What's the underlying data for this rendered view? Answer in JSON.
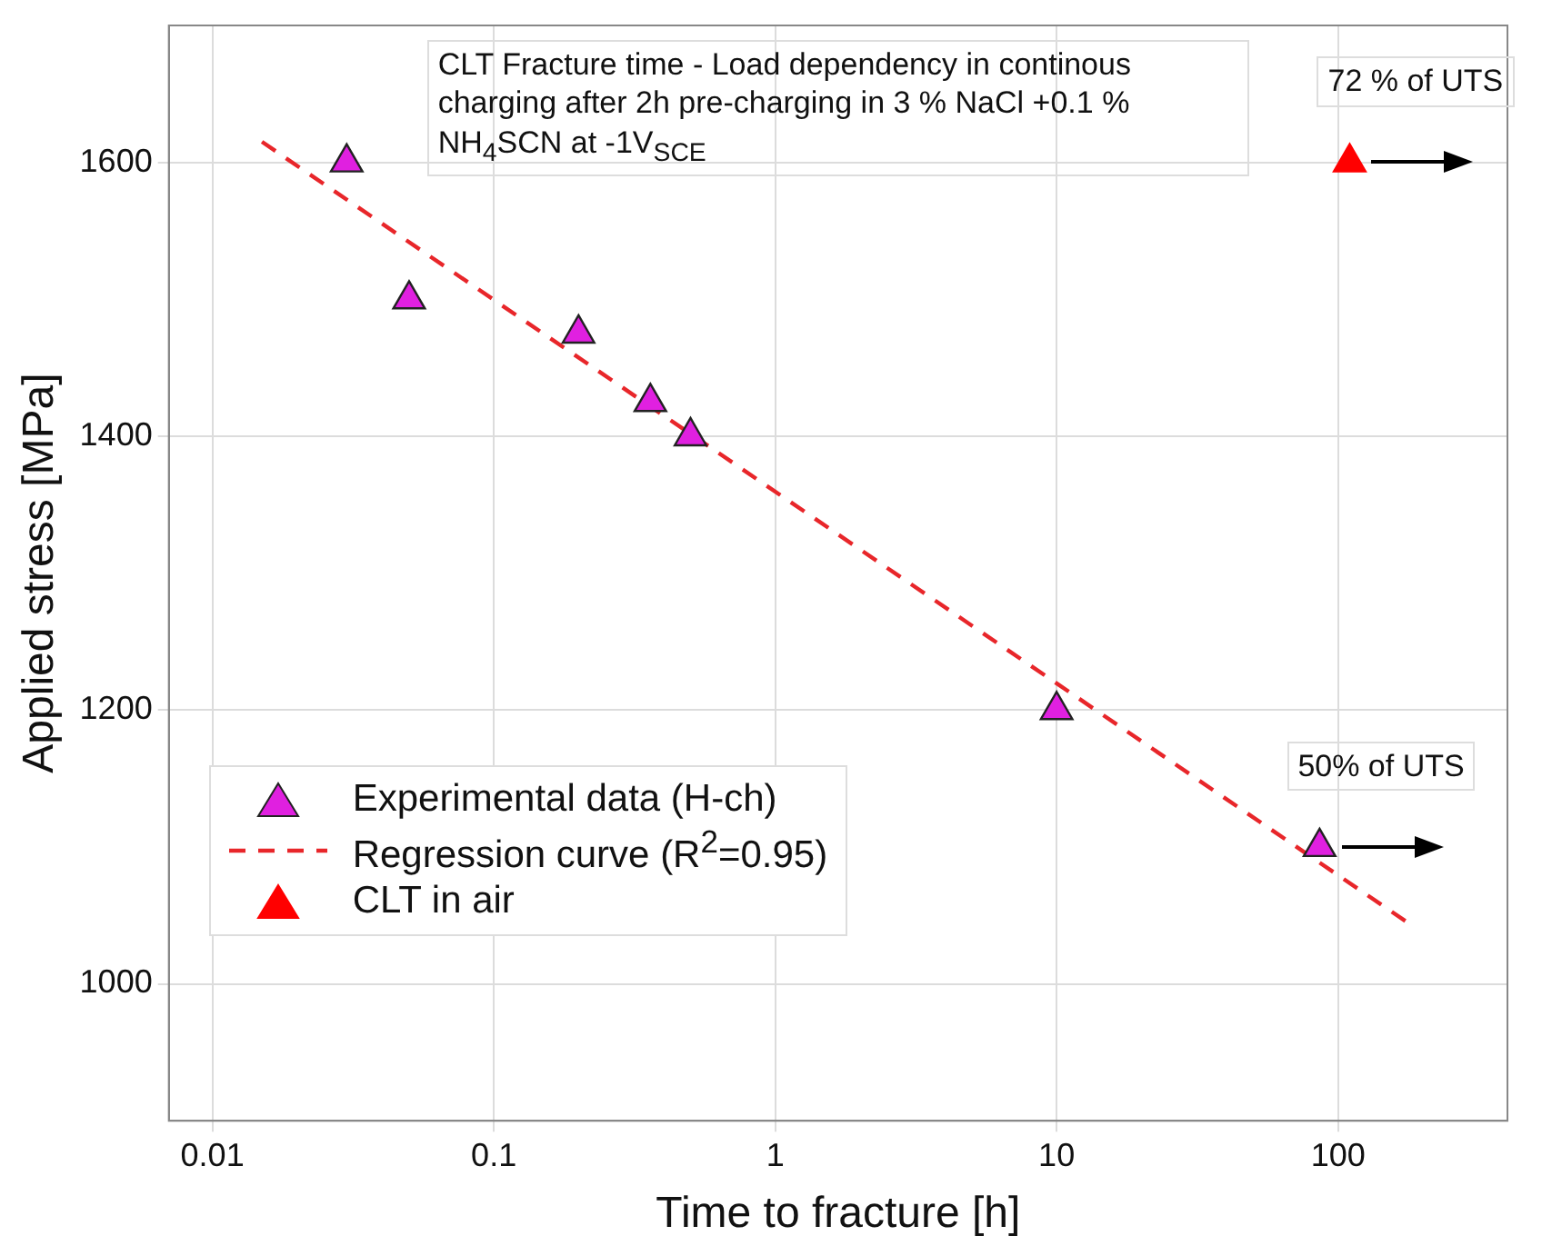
{
  "chart_data": {
    "type": "scatter",
    "xlabel": "Time to fracture [h]",
    "ylabel": "Applied stress [MPa]",
    "log": "x",
    "xlim": [
      0.007,
      400
    ],
    "xticks": [
      0.01,
      0.1,
      1,
      10,
      100
    ],
    "ylim": [
      900,
      1700
    ],
    "yticks": [
      1000,
      1200,
      1400,
      1600
    ],
    "grid": true,
    "legend": "bottom left",
    "marker": "triangle",
    "series": [
      {
        "name": "Experimental data (H-ch)",
        "color": "#e020e0",
        "x": [
          0.03,
          0.05,
          0.2,
          0.36,
          0.5,
          10,
          86
        ],
        "values": [
          1600,
          1500,
          1475,
          1425,
          1400,
          1200,
          1100
        ]
      },
      {
        "name": "Regression curve (R$^{2}$=0.95)",
        "type": "line",
        "color": "#e8262a",
        "line_style": "dashed",
        "marker": "none",
        "x": [
          0.015,
          176
        ],
        "values": [
          1615,
          1045
        ]
      },
      {
        "name": "CLT in air",
        "color": "#ff0000",
        "x": [
          110
        ],
        "values": [
          1600
        ]
      }
    ],
    "annotations": [
      "CLT Fracture time - Load dependency   in continous charging after 2h pre-charging in 3 % NaCl +0.1 % NH$_{4}$SCN at  -1V$_{SCE}$",
      {
        "text": "72 % of UTS",
        "x": 110,
        "y": 1600
      },
      {
        "text": "50% of UTS",
        "x": 86,
        "y": 1100
      }
    ]
  }
}
